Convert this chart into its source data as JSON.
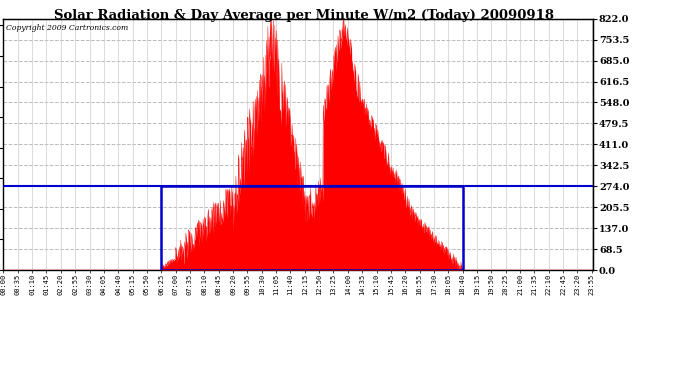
{
  "title": "Solar Radiation & Day Average per Minute W/m2 (Today) 20090918",
  "copyright": "Copyright 2009 Cartronics.com",
  "ymin": 0.0,
  "ymax": 822.0,
  "yticks": [
    0.0,
    68.5,
    137.0,
    205.5,
    274.0,
    342.5,
    411.0,
    479.5,
    548.0,
    616.5,
    685.0,
    753.5,
    822.0
  ],
  "bar_color": "#ff0000",
  "grid_color": "#aaaaaa",
  "grid_style": "--",
  "box_color": "#0000cc",
  "avg_value": 274.0,
  "sunrise_minute": 385,
  "sunset_minute": 1120,
  "total_minutes": 1440,
  "label_step_minutes": 35,
  "bg_color": "#ffffff"
}
